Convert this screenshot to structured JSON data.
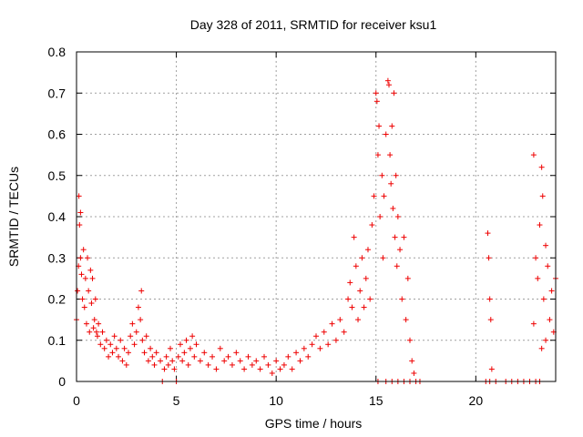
{
  "chart_data": {
    "type": "scatter",
    "title": "Day 328 of 2011, SRMTID for receiver ksu1",
    "xlabel": "GPS time / hours",
    "ylabel": "SRMTID / TECUs",
    "xlim": [
      0,
      24
    ],
    "ylim": [
      0,
      0.8
    ],
    "xticks": [
      0,
      5,
      10,
      15,
      20
    ],
    "yticks": [
      0,
      0.1,
      0.2,
      0.3,
      0.4,
      0.5,
      0.6,
      0.7,
      0.8
    ],
    "xtick_labels": [
      "0",
      "5",
      "10",
      "15",
      "20"
    ],
    "ytick_labels": [
      "0",
      "0.1",
      "0.2",
      "0.3",
      "0.4",
      "0.5",
      "0.6",
      "0.7",
      "0.8"
    ],
    "grid": true,
    "marker": "+",
    "color": "#ee0000",
    "series": [
      {
        "name": "ksu1",
        "points": [
          [
            0.0,
            0.15
          ],
          [
            0.05,
            0.22
          ],
          [
            0.1,
            0.28
          ],
          [
            0.12,
            0.45
          ],
          [
            0.15,
            0.38
          ],
          [
            0.2,
            0.41
          ],
          [
            0.2,
            0.3
          ],
          [
            0.25,
            0.26
          ],
          [
            0.3,
            0.2
          ],
          [
            0.35,
            0.32
          ],
          [
            0.4,
            0.18
          ],
          [
            0.45,
            0.25
          ],
          [
            0.5,
            0.14
          ],
          [
            0.55,
            0.3
          ],
          [
            0.6,
            0.22
          ],
          [
            0.65,
            0.12
          ],
          [
            0.7,
            0.27
          ],
          [
            0.75,
            0.19
          ],
          [
            0.8,
            0.25
          ],
          [
            0.85,
            0.13
          ],
          [
            0.9,
            0.15
          ],
          [
            0.95,
            0.2
          ],
          [
            1.0,
            0.12
          ],
          [
            1.05,
            0.11
          ],
          [
            1.1,
            0.14
          ],
          [
            1.2,
            0.09
          ],
          [
            1.3,
            0.12
          ],
          [
            1.4,
            0.08
          ],
          [
            1.5,
            0.1
          ],
          [
            1.6,
            0.06
          ],
          [
            1.7,
            0.09
          ],
          [
            1.8,
            0.07
          ],
          [
            1.9,
            0.11
          ],
          [
            2.0,
            0.08
          ],
          [
            2.1,
            0.06
          ],
          [
            2.2,
            0.1
          ],
          [
            2.3,
            0.05
          ],
          [
            2.4,
            0.08
          ],
          [
            2.5,
            0.04
          ],
          [
            2.6,
            0.07
          ],
          [
            2.7,
            0.11
          ],
          [
            2.8,
            0.14
          ],
          [
            2.9,
            0.09
          ],
          [
            3.0,
            0.12
          ],
          [
            3.1,
            0.18
          ],
          [
            3.2,
            0.15
          ],
          [
            3.25,
            0.22
          ],
          [
            3.3,
            0.1
          ],
          [
            3.4,
            0.07
          ],
          [
            3.5,
            0.11
          ],
          [
            3.6,
            0.05
          ],
          [
            3.7,
            0.08
          ],
          [
            3.8,
            0.06
          ],
          [
            3.9,
            0.04
          ],
          [
            4.0,
            0.07
          ],
          [
            4.2,
            0.05
          ],
          [
            4.3,
            0.0
          ],
          [
            4.4,
            0.03
          ],
          [
            4.5,
            0.06
          ],
          [
            4.6,
            0.04
          ],
          [
            4.7,
            0.08
          ],
          [
            4.8,
            0.05
          ],
          [
            4.9,
            0.03
          ],
          [
            5.0,
            0.0
          ],
          [
            5.1,
            0.06
          ],
          [
            5.2,
            0.09
          ],
          [
            5.3,
            0.05
          ],
          [
            5.4,
            0.07
          ],
          [
            5.5,
            0.1
          ],
          [
            5.6,
            0.04
          ],
          [
            5.7,
            0.08
          ],
          [
            5.8,
            0.11
          ],
          [
            5.9,
            0.06
          ],
          [
            6.0,
            0.09
          ],
          [
            6.2,
            0.05
          ],
          [
            6.4,
            0.07
          ],
          [
            6.6,
            0.04
          ],
          [
            6.8,
            0.06
          ],
          [
            7.0,
            0.03
          ],
          [
            7.2,
            0.08
          ],
          [
            7.4,
            0.05
          ],
          [
            7.6,
            0.06
          ],
          [
            7.8,
            0.04
          ],
          [
            8.0,
            0.07
          ],
          [
            8.2,
            0.05
          ],
          [
            8.4,
            0.03
          ],
          [
            8.6,
            0.06
          ],
          [
            8.8,
            0.04
          ],
          [
            9.0,
            0.05
          ],
          [
            9.2,
            0.03
          ],
          [
            9.4,
            0.06
          ],
          [
            9.6,
            0.04
          ],
          [
            9.8,
            0.02
          ],
          [
            10.0,
            0.05
          ],
          [
            10.2,
            0.03
          ],
          [
            10.4,
            0.04
          ],
          [
            10.6,
            0.06
          ],
          [
            10.8,
            0.03
          ],
          [
            11.0,
            0.07
          ],
          [
            11.2,
            0.05
          ],
          [
            11.4,
            0.08
          ],
          [
            11.6,
            0.06
          ],
          [
            11.8,
            0.09
          ],
          [
            12.0,
            0.11
          ],
          [
            12.2,
            0.08
          ],
          [
            12.4,
            0.12
          ],
          [
            12.6,
            0.09
          ],
          [
            12.8,
            0.14
          ],
          [
            13.0,
            0.1
          ],
          [
            13.2,
            0.15
          ],
          [
            13.4,
            0.12
          ],
          [
            13.6,
            0.2
          ],
          [
            13.7,
            0.24
          ],
          [
            13.8,
            0.18
          ],
          [
            13.9,
            0.35
          ],
          [
            14.0,
            0.28
          ],
          [
            14.1,
            0.15
          ],
          [
            14.2,
            0.22
          ],
          [
            14.3,
            0.3
          ],
          [
            14.4,
            0.18
          ],
          [
            14.5,
            0.25
          ],
          [
            14.6,
            0.32
          ],
          [
            14.7,
            0.2
          ],
          [
            14.8,
            0.38
          ],
          [
            14.9,
            0.45
          ],
          [
            15.0,
            0.7
          ],
          [
            15.05,
            0.68
          ],
          [
            15.1,
            0.55
          ],
          [
            15.15,
            0.62
          ],
          [
            15.2,
            0.4
          ],
          [
            15.3,
            0.5
          ],
          [
            15.35,
            0.3
          ],
          [
            15.4,
            0.45
          ],
          [
            15.5,
            0.6
          ],
          [
            15.6,
            0.73
          ],
          [
            15.65,
            0.72
          ],
          [
            15.7,
            0.55
          ],
          [
            15.75,
            0.48
          ],
          [
            15.8,
            0.62
          ],
          [
            15.85,
            0.42
          ],
          [
            15.9,
            0.7
          ],
          [
            15.95,
            0.35
          ],
          [
            16.0,
            0.5
          ],
          [
            16.05,
            0.28
          ],
          [
            16.1,
            0.4
          ],
          [
            16.2,
            0.32
          ],
          [
            16.3,
            0.2
          ],
          [
            16.4,
            0.35
          ],
          [
            16.5,
            0.15
          ],
          [
            16.6,
            0.25
          ],
          [
            16.7,
            0.1
          ],
          [
            16.8,
            0.05
          ],
          [
            16.9,
            0.02
          ],
          [
            17.0,
            0.0
          ],
          [
            17.2,
            0.0
          ],
          [
            15.1,
            0.0
          ],
          [
            15.5,
            0.0
          ],
          [
            15.8,
            0.0
          ],
          [
            16.1,
            0.0
          ],
          [
            16.4,
            0.0
          ],
          [
            16.7,
            0.0
          ],
          [
            20.6,
            0.36
          ],
          [
            20.65,
            0.3
          ],
          [
            20.7,
            0.2
          ],
          [
            20.75,
            0.15
          ],
          [
            20.8,
            0.03
          ],
          [
            20.5,
            0.0
          ],
          [
            20.7,
            0.0
          ],
          [
            21.0,
            0.0
          ],
          [
            21.5,
            0.0
          ],
          [
            21.8,
            0.0
          ],
          [
            22.1,
            0.0
          ],
          [
            22.4,
            0.0
          ],
          [
            22.7,
            0.0
          ],
          [
            23.0,
            0.0
          ],
          [
            23.2,
            0.0
          ],
          [
            22.9,
            0.55
          ],
          [
            22.9,
            0.14
          ],
          [
            23.0,
            0.3
          ],
          [
            23.1,
            0.25
          ],
          [
            23.2,
            0.38
          ],
          [
            23.3,
            0.52
          ],
          [
            23.35,
            0.45
          ],
          [
            23.4,
            0.2
          ],
          [
            23.5,
            0.33
          ],
          [
            23.6,
            0.28
          ],
          [
            23.7,
            0.15
          ],
          [
            23.8,
            0.22
          ],
          [
            23.9,
            0.12
          ],
          [
            24.0,
            0.25
          ],
          [
            23.3,
            0.08
          ],
          [
            23.5,
            0.1
          ]
        ]
      }
    ]
  }
}
